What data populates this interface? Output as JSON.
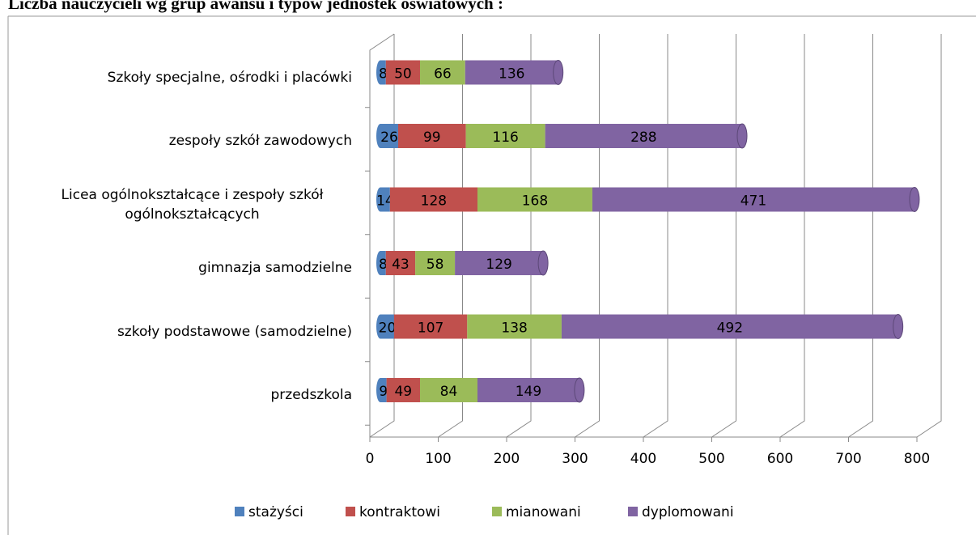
{
  "chart_data": {
    "type": "bar",
    "orientation": "horizontal",
    "stacked": true,
    "title": "Liczba nauczycieli wg grup awansu i typów jednostek oświatowych :",
    "categories": [
      "przedszkola",
      "szkoły podstawowe (samodzielne)",
      "gimnazja samodzielne",
      "Licea ogólnokształcące i zespoły szkół ogólnokształcących",
      "zespoły szkół zawodowych",
      "Szkoły specjalne, ośrodki i placówki"
    ],
    "series": [
      {
        "name": "stażyści",
        "color": "#4f81bd",
        "values": [
          9,
          20,
          8,
          14,
          26,
          8
        ]
      },
      {
        "name": "kontraktowi",
        "color": "#c0504d",
        "values": [
          49,
          107,
          43,
          128,
          99,
          50
        ]
      },
      {
        "name": "mianowani",
        "color": "#9bbb59",
        "values": [
          84,
          138,
          58,
          168,
          116,
          66
        ]
      },
      {
        "name": "dyplomowani",
        "color": "#8064a2",
        "values": [
          149,
          492,
          129,
          471,
          288,
          136
        ]
      }
    ],
    "xlim": [
      0,
      800
    ],
    "xticks": [
      0,
      100,
      200,
      300,
      400,
      500,
      600,
      700,
      800
    ],
    "grid": true,
    "legend": "bottom"
  }
}
